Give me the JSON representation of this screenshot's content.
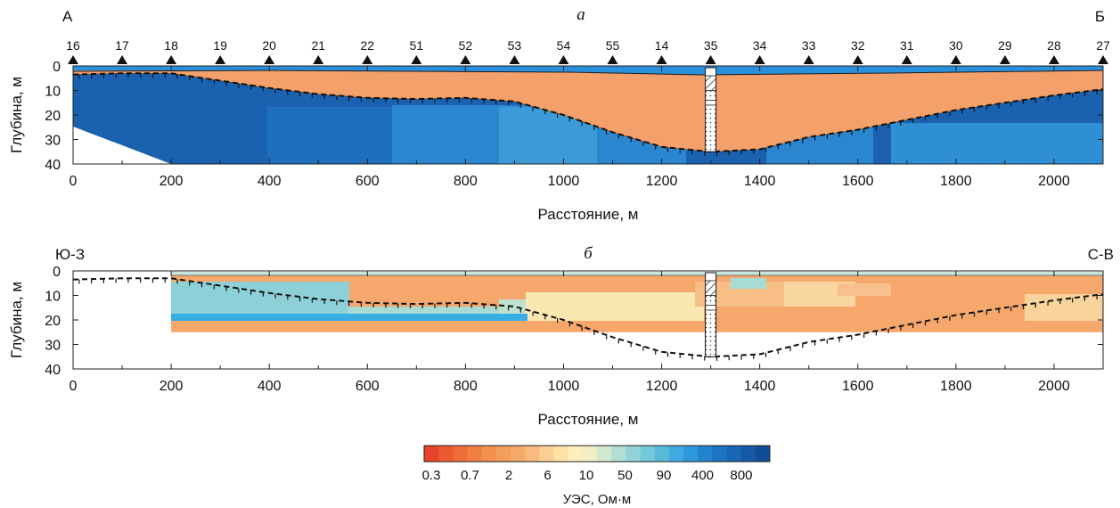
{
  "chart_data": [
    {
      "type": "heatmap",
      "panel_label": "а",
      "left_label": "А",
      "right_label": "Б",
      "xlabel": "Расстояние, м",
      "ylabel": "Глубина, м",
      "xlim": [
        0,
        2100
      ],
      "ylim": [
        0,
        40
      ],
      "x_ticks": [
        0,
        200,
        400,
        600,
        800,
        1000,
        1200,
        1400,
        1600,
        1800,
        2000
      ],
      "y_ticks": [
        0,
        10,
        20,
        30,
        40
      ],
      "stations": [
        {
          "label": "16",
          "x": 0
        },
        {
          "label": "17",
          "x": 100
        },
        {
          "label": "18",
          "x": 200
        },
        {
          "label": "19",
          "x": 300
        },
        {
          "label": "20",
          "x": 400
        },
        {
          "label": "21",
          "x": 500
        },
        {
          "label": "22",
          "x": 600
        },
        {
          "label": "51",
          "x": 700
        },
        {
          "label": "52",
          "x": 800
        },
        {
          "label": "53",
          "x": 900
        },
        {
          "label": "54",
          "x": 1000
        },
        {
          "label": "55",
          "x": 1100
        },
        {
          "label": "14",
          "x": 1200
        },
        {
          "label": "35",
          "x": 1300
        },
        {
          "label": "34",
          "x": 1400
        },
        {
          "label": "33",
          "x": 1500
        },
        {
          "label": "32",
          "x": 1600
        },
        {
          "label": "31",
          "x": 1700
        },
        {
          "label": "30",
          "x": 1800
        },
        {
          "label": "29",
          "x": 1900
        },
        {
          "label": "28",
          "x": 2000
        },
        {
          "label": "27",
          "x": 2100
        }
      ],
      "boundary_depth": [
        [
          0,
          3.5
        ],
        [
          100,
          3
        ],
        [
          200,
          3
        ],
        [
          300,
          6
        ],
        [
          400,
          9
        ],
        [
          500,
          11.5
        ],
        [
          600,
          13
        ],
        [
          700,
          13.5
        ],
        [
          800,
          13
        ],
        [
          900,
          14.5
        ],
        [
          1000,
          20
        ],
        [
          1100,
          27
        ],
        [
          1200,
          33
        ],
        [
          1300,
          35
        ],
        [
          1400,
          34
        ],
        [
          1500,
          29
        ],
        [
          1600,
          26
        ],
        [
          1700,
          22
        ],
        [
          1800,
          18
        ],
        [
          1900,
          15
        ],
        [
          2000,
          12
        ],
        [
          2100,
          9.5
        ]
      ],
      "borehole": {
        "x": 1300,
        "depth": 35
      }
    },
    {
      "type": "heatmap",
      "panel_label": "б",
      "left_label": "Ю-З",
      "right_label": "С-В",
      "xlabel": "Расстояние, м",
      "ylabel": "Глубина, м",
      "xlim": [
        0,
        2100
      ],
      "ylim": [
        0,
        40
      ],
      "x_ticks": [
        0,
        200,
        400,
        600,
        800,
        1000,
        1200,
        1400,
        1600,
        1800,
        2000
      ],
      "y_ticks": [
        0,
        10,
        20,
        30,
        40
      ],
      "model_x_range": [
        200,
        2100
      ],
      "model_depth": 25,
      "boundary_depth": [
        [
          0,
          3.5
        ],
        [
          100,
          3
        ],
        [
          200,
          3
        ],
        [
          300,
          6
        ],
        [
          400,
          9
        ],
        [
          500,
          11.5
        ],
        [
          600,
          13
        ],
        [
          700,
          13.5
        ],
        [
          800,
          13
        ],
        [
          900,
          14.5
        ],
        [
          1000,
          20
        ],
        [
          1100,
          27
        ],
        [
          1200,
          33
        ],
        [
          1300,
          35
        ],
        [
          1400,
          34
        ],
        [
          1500,
          29
        ],
        [
          1600,
          26
        ],
        [
          1700,
          22
        ],
        [
          1800,
          18
        ],
        [
          1900,
          15
        ],
        [
          2000,
          12
        ],
        [
          2100,
          9.5
        ]
      ],
      "borehole": {
        "x": 1300,
        "depth": 35
      }
    }
  ],
  "colorbar": {
    "title": "УЭС, Ом·м",
    "tick_labels": [
      "0.3",
      "0.7",
      "2",
      "6",
      "10",
      "50",
      "90",
      "400",
      "800"
    ],
    "colors": [
      "#e8432b",
      "#eb5a32",
      "#ee6d3a",
      "#f07f44",
      "#f2904f",
      "#f49c5a",
      "#f6aa6a",
      "#f8ba7e",
      "#fbcf93",
      "#fde2a8",
      "#fdf0bc",
      "#f0efc4",
      "#d2e9cd",
      "#b3dfd3",
      "#92d3d8",
      "#74c8d8",
      "#58bcd8",
      "#3fa9e2",
      "#2f98dc",
      "#2383cf",
      "#1c74c3",
      "#1866b5",
      "#1559a7",
      "#114c98"
    ]
  }
}
